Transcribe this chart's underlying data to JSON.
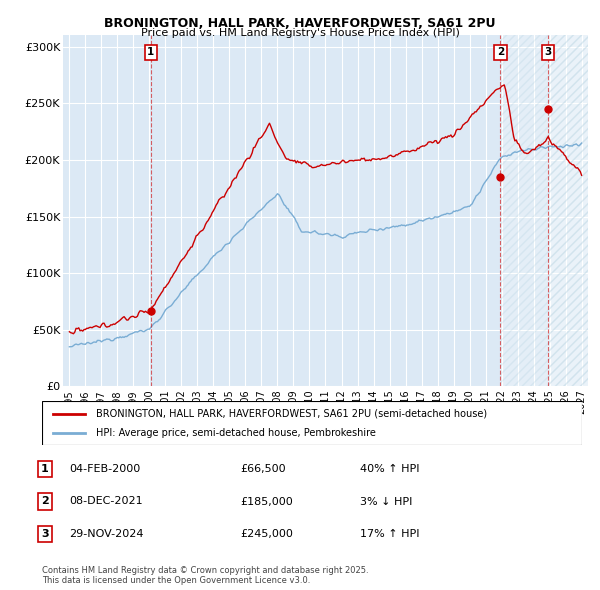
{
  "title": "BRONINGTON, HALL PARK, HAVERFORDWEST, SA61 2PU",
  "subtitle": "Price paid vs. HM Land Registry's House Price Index (HPI)",
  "ylim": [
    0,
    310000
  ],
  "yticks": [
    0,
    50000,
    100000,
    150000,
    200000,
    250000,
    300000
  ],
  "ytick_labels": [
    "£0",
    "£50K",
    "£100K",
    "£150K",
    "£200K",
    "£250K",
    "£300K"
  ],
  "background_color": "#ffffff",
  "plot_bg_color": "#dce9f5",
  "grid_color": "#ffffff",
  "red_color": "#cc0000",
  "blue_color": "#7aadd4",
  "sale_year_nums": [
    2000.09,
    2021.92,
    2024.91
  ],
  "sale_prices": [
    66500,
    185000,
    245000
  ],
  "sale_labels": [
    "1",
    "2",
    "3"
  ],
  "sale_info": [
    {
      "label": "1",
      "date": "04-FEB-2000",
      "price": "£66,500",
      "hpi": "40% ↑ HPI"
    },
    {
      "label": "2",
      "date": "08-DEC-2021",
      "price": "£185,000",
      "hpi": "3% ↓ HPI"
    },
    {
      "label": "3",
      "date": "29-NOV-2024",
      "price": "£245,000",
      "hpi": "17% ↑ HPI"
    }
  ],
  "legend_line1": "BRONINGTON, HALL PARK, HAVERFORDWEST, SA61 2PU (semi-detached house)",
  "legend_line2": "HPI: Average price, semi-detached house, Pembrokeshire",
  "footer": "Contains HM Land Registry data © Crown copyright and database right 2025.\nThis data is licensed under the Open Government Licence v3.0.",
  "xmin": 1994.6,
  "xmax": 2027.4
}
